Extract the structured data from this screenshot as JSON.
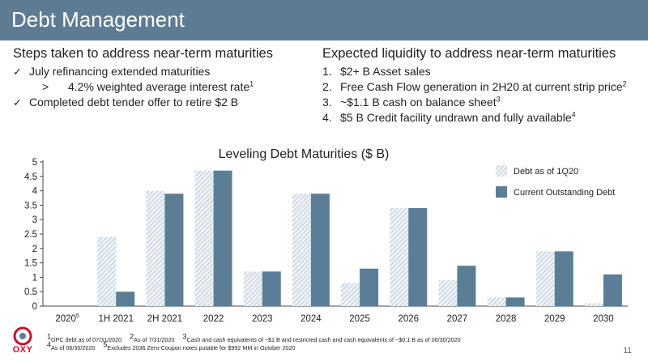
{
  "header": {
    "title": "Debt Management"
  },
  "left": {
    "heading": "Steps taken to address near-term maturities",
    "items": [
      {
        "text": "July refinancing extended maturities"
      },
      {
        "text": "4.2% weighted average interest rate",
        "sup": "1"
      },
      {
        "text": "Completed debt tender offer to retire $2 B"
      }
    ],
    "check_symbol": "✓",
    "arrow_symbol": ">"
  },
  "right": {
    "heading": "Expected liquidity to address near-term maturities",
    "items": [
      {
        "num": "1.",
        "text": "$2+ B Asset sales",
        "sup": ""
      },
      {
        "num": "2.",
        "text": "Free Cash Flow generation in 2H20 at current strip price",
        "sup": "2"
      },
      {
        "num": "3.",
        "text": "~$1.1 B cash on balance sheet",
        "sup": "3"
      },
      {
        "num": "4.",
        "text": "$5 B Credit facility undrawn and fully available",
        "sup": "4"
      }
    ]
  },
  "chart_data": {
    "type": "bar",
    "title": "Leveling Debt Maturities ($ B)",
    "categories": [
      "2020",
      "1H 2021",
      "2H 2021",
      "2022",
      "2023",
      "2024",
      "2025",
      "2026",
      "2027",
      "2028",
      "2029",
      "2030"
    ],
    "category_sups": [
      "5",
      "",
      "",
      "",
      "",
      "",
      "",
      "",
      "",
      "",
      "",
      ""
    ],
    "series": [
      {
        "name": "Debt as of 1Q20",
        "values": [
          0,
          2.4,
          4.0,
          4.7,
          1.2,
          3.9,
          0.8,
          3.4,
          0.9,
          0.3,
          1.9,
          0.1
        ],
        "pattern": "hatched",
        "color": "#c9d7e2"
      },
      {
        "name": "Current Outstanding Debt",
        "values": [
          0,
          0.5,
          3.9,
          4.7,
          1.2,
          3.9,
          1.3,
          3.4,
          1.4,
          0.3,
          1.9,
          1.1
        ],
        "color": "#5b7e96"
      }
    ],
    "yticks": [
      "0",
      "0.5",
      "1",
      "1.5",
      "2",
      "2.5",
      "3",
      "3.5",
      "4",
      "4.5",
      "5"
    ],
    "ylim": [
      0,
      5
    ],
    "legend_position": "top-right",
    "grid": false
  },
  "footnotes": [
    {
      "sup": "1",
      "text": "OPC debt as of 07/31/2020"
    },
    {
      "sup": "2",
      "text": "As of 7/31/2020"
    },
    {
      "sup": "3",
      "text": "Cash and cash equivalents of ~$1 B and restricted cash and cash equivalents of ~$0.1 B as of 06/30/2020"
    },
    {
      "sup": "4",
      "text": "As of 06/30/2020"
    },
    {
      "sup": "5",
      "text": "Excludes 2036 Zero-Coupon notes putable for $992 MM in October 2020"
    }
  ],
  "page_number": "11",
  "logo": {
    "text": "OXY",
    "color": "#c8102e"
  }
}
